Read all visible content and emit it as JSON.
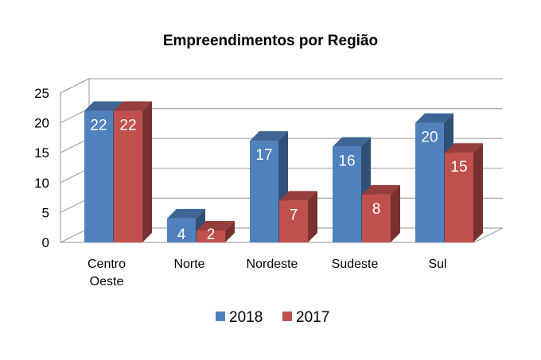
{
  "chart_data": {
    "type": "bar",
    "title": "Empreendimentos por Região",
    "categories": [
      "Centro Oeste",
      "Norte",
      "Nordeste",
      "Sudeste",
      "Sul"
    ],
    "category_lines": [
      [
        "Centro",
        "Oeste"
      ],
      [
        "Norte"
      ],
      [
        "Nordeste"
      ],
      [
        "Sudeste"
      ],
      [
        "Sul"
      ]
    ],
    "series": [
      {
        "name": "2018",
        "values": [
          22,
          4,
          17,
          16,
          20
        ],
        "color": "#4F81BD"
      },
      {
        "name": "2017",
        "values": [
          22,
          2,
          7,
          8,
          15
        ],
        "color": "#C0504D"
      }
    ],
    "yticks": [
      0,
      5,
      10,
      15,
      20,
      25
    ],
    "ylim": [
      0,
      25
    ],
    "grid": true,
    "legend_position": "bottom",
    "style": "3d-clustered-column",
    "xlabel": "",
    "ylabel": ""
  }
}
